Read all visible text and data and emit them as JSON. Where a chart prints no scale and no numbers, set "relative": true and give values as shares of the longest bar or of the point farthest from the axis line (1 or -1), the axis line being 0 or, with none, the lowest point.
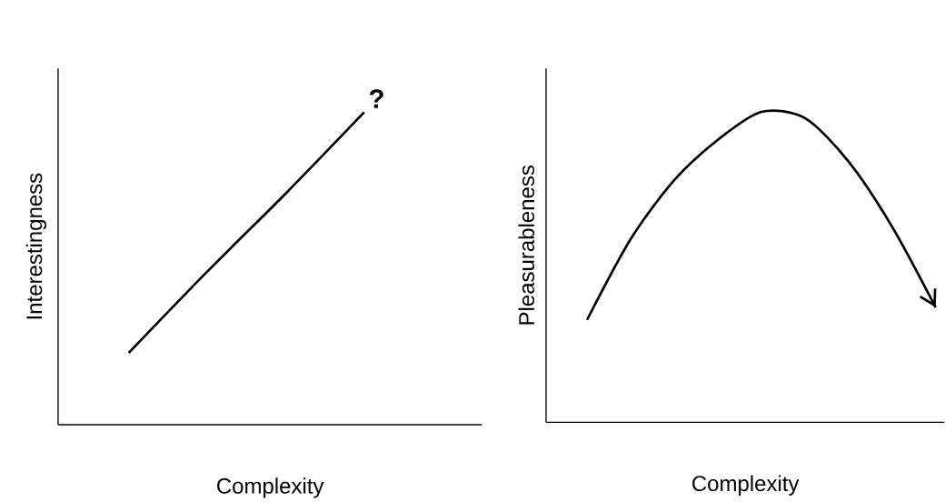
{
  "chart_data": [
    {
      "type": "line",
      "relative": true,
      "xlabel": "Complexity",
      "ylabel": "Interestingness",
      "categories": [
        null,
        null,
        null,
        null,
        null,
        null
      ],
      "values": [
        null,
        0.23,
        0.49,
        0.74,
        1.0,
        null
      ],
      "color": "#000000",
      "annotations": [
        "?"
      ]
    },
    {
      "type": "line",
      "relative": true,
      "xlabel": "Complexity",
      "ylabel": "Pleasurableness",
      "categories": [
        null,
        null,
        null,
        null,
        null,
        null,
        null,
        null,
        null
      ],
      "values": [
        0.33,
        0.59,
        0.78,
        0.91,
        1.0,
        0.98,
        0.84,
        0.63,
        0.37
      ],
      "color": "#000000"
    }
  ]
}
